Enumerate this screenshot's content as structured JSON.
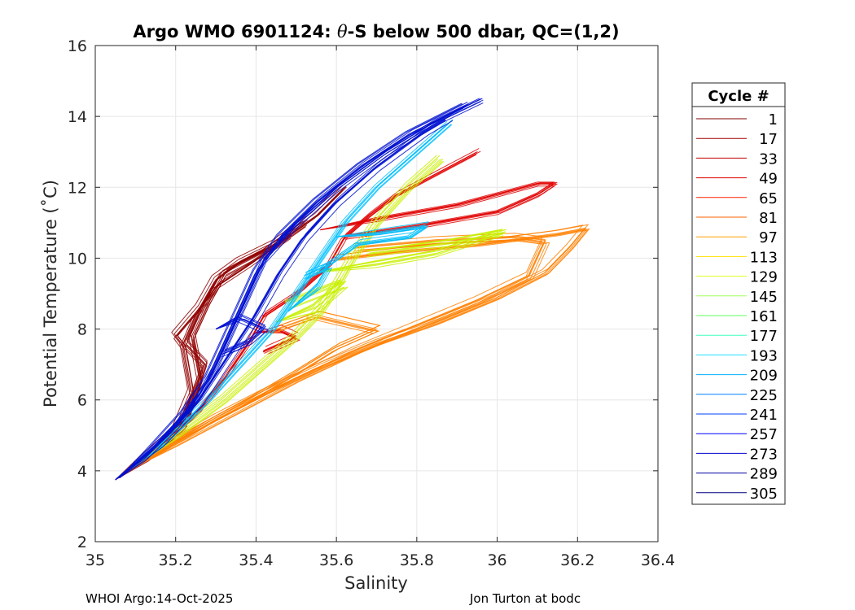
{
  "chart_data": {
    "type": "line",
    "title": "Argo WMO 6901124: θ-S below 500 dbar,  QC=(1,2)",
    "title_parts": [
      "Argo WMO 6901124: ",
      "θ",
      "-S below 500 dbar,  QC=(1,2)"
    ],
    "xlabel": "Salinity",
    "ylabel": "Potential Temperature (˚C)",
    "xlim": [
      35,
      36.4
    ],
    "ylim": [
      2,
      16
    ],
    "xticks": [
      35,
      35.2,
      35.4,
      35.6,
      35.8,
      36,
      36.2,
      36.4
    ],
    "xtick_labels": [
      "35",
      "35.2",
      "35.4",
      "35.6",
      "35.8",
      "36",
      "36.2",
      "36.4"
    ],
    "yticks": [
      2,
      4,
      6,
      8,
      10,
      12,
      14,
      16
    ],
    "ytick_labels": [
      "2",
      "4",
      "6",
      "8",
      "10",
      "12",
      "14",
      "16"
    ],
    "grid": true,
    "legend": {
      "title": "Cycle #",
      "placement": "right-outside",
      "entries": [
        {
          "label": "1",
          "color": "#800000"
        },
        {
          "label": "17",
          "color": "#a00000"
        },
        {
          "label": "33",
          "color": "#c00000"
        },
        {
          "label": "49",
          "color": "#e00000"
        },
        {
          "label": "65",
          "color": "#ff2000"
        },
        {
          "label": "81",
          "color": "#ff6000"
        },
        {
          "label": "97",
          "color": "#ffa000"
        },
        {
          "label": "113",
          "color": "#ffe000"
        },
        {
          "label": "129",
          "color": "#e0ff20"
        },
        {
          "label": "145",
          "color": "#a0ff60"
        },
        {
          "label": "161",
          "color": "#60ff60"
        },
        {
          "label": "177",
          "color": "#40ffc0"
        },
        {
          "label": "193",
          "color": "#20e0ff"
        },
        {
          "label": "209",
          "color": "#00b0ff"
        },
        {
          "label": "225",
          "color": "#0080ff"
        },
        {
          "label": "241",
          "color": "#0040ff"
        },
        {
          "label": "257",
          "color": "#0000ff"
        },
        {
          "label": "273",
          "color": "#0000d0"
        },
        {
          "label": "289",
          "color": "#0000a0"
        },
        {
          "label": "305",
          "color": "#000080"
        }
      ]
    },
    "series_groups": [
      {
        "name": "cycles 1-17 (dark red)",
        "color": "#900000",
        "profiles": [
          [
            [
              35.05,
              3.75
            ],
            [
              35.12,
              4.3
            ],
            [
              35.2,
              5.1
            ],
            [
              35.24,
              6.2
            ],
            [
              35.22,
              7.5
            ],
            [
              35.2,
              7.8
            ],
            [
              35.26,
              8.6
            ],
            [
              35.3,
              9.4
            ],
            [
              35.36,
              9.9
            ],
            [
              35.45,
              10.4
            ],
            [
              35.55,
              11.2
            ],
            [
              35.62,
              12.0
            ]
          ],
          [
            [
              35.05,
              3.75
            ],
            [
              35.13,
              4.4
            ],
            [
              35.22,
              5.3
            ],
            [
              35.26,
              6.6
            ],
            [
              35.24,
              7.8
            ],
            [
              35.28,
              8.8
            ],
            [
              35.32,
              9.6
            ],
            [
              35.42,
              10.2
            ],
            [
              35.52,
              11.0
            ]
          ],
          [
            [
              35.06,
              3.8
            ],
            [
              35.14,
              4.5
            ],
            [
              35.23,
              5.6
            ],
            [
              35.27,
              7.0
            ],
            [
              35.22,
              7.6
            ],
            [
              35.25,
              8.4
            ],
            [
              35.3,
              9.2
            ],
            [
              35.38,
              9.8
            ],
            [
              35.48,
              10.6
            ]
          ]
        ]
      },
      {
        "name": "cycles 33-65 (red)",
        "color": "#e00000",
        "profiles": [
          [
            [
              35.06,
              3.8
            ],
            [
              35.15,
              4.6
            ],
            [
              35.25,
              5.6
            ],
            [
              35.32,
              6.6
            ],
            [
              35.38,
              7.6
            ],
            [
              35.42,
              8.4
            ],
            [
              35.5,
              9.0
            ],
            [
              35.58,
              9.8
            ],
            [
              35.62,
              10.6
            ],
            [
              35.68,
              11.2
            ],
            [
              35.75,
              11.8
            ],
            [
              35.85,
              12.4
            ],
            [
              35.95,
              13.0
            ]
          ],
          [
            [
              35.4,
              7.9
            ],
            [
              35.46,
              8.0
            ],
            [
              35.5,
              7.8
            ],
            [
              35.42,
              7.4
            ]
          ],
          [
            [
              35.56,
              10.8
            ],
            [
              35.7,
              11.1
            ],
            [
              35.9,
              11.5
            ],
            [
              36.1,
              12.1
            ],
            [
              36.14,
              12.1
            ],
            [
              36.1,
              11.8
            ],
            [
              36.0,
              11.3
            ],
            [
              35.8,
              10.9
            ],
            [
              35.62,
              10.6
            ]
          ]
        ]
      },
      {
        "name": "cycles 81-113 (orange)",
        "color": "#ff8000",
        "profiles": [
          [
            [
              35.07,
              3.9
            ],
            [
              35.18,
              4.7
            ],
            [
              35.3,
              5.5
            ],
            [
              35.42,
              6.2
            ],
            [
              35.55,
              6.9
            ],
            [
              35.7,
              7.6
            ],
            [
              35.85,
              8.2
            ],
            [
              36.0,
              8.9
            ],
            [
              36.12,
              9.6
            ],
            [
              36.18,
              10.3
            ],
            [
              36.22,
              10.85
            ],
            [
              36.15,
              10.7
            ],
            [
              35.95,
              10.4
            ],
            [
              35.75,
              10.2
            ],
            [
              35.6,
              10.0
            ]
          ],
          [
            [
              35.08,
              4.0
            ],
            [
              35.2,
              4.8
            ],
            [
              35.35,
              5.7
            ],
            [
              35.5,
              6.6
            ],
            [
              35.65,
              7.4
            ],
            [
              35.8,
              8.1
            ],
            [
              35.95,
              8.8
            ],
            [
              36.08,
              9.5
            ],
            [
              36.12,
              10.5
            ],
            [
              36.05,
              10.6
            ],
            [
              35.85,
              10.5
            ],
            [
              35.65,
              10.3
            ]
          ],
          [
            [
              35.1,
              4.1
            ],
            [
              35.22,
              5.0
            ],
            [
              35.38,
              6.0
            ],
            [
              35.5,
              6.8
            ],
            [
              35.6,
              7.5
            ],
            [
              35.7,
              8.0
            ],
            [
              35.55,
              8.4
            ],
            [
              35.45,
              8.0
            ]
          ]
        ]
      },
      {
        "name": "cycles 129-161 (yellow-green)",
        "color": "#c8f000",
        "profiles": [
          [
            [
              35.08,
              4.0
            ],
            [
              35.2,
              5.0
            ],
            [
              35.32,
              6.0
            ],
            [
              35.42,
              7.0
            ],
            [
              35.5,
              7.8
            ],
            [
              35.56,
              8.5
            ],
            [
              35.6,
              9.2
            ],
            [
              35.64,
              10.0
            ],
            [
              35.7,
              11.0
            ],
            [
              35.78,
              12.0
            ],
            [
              35.86,
              12.8
            ]
          ],
          [
            [
              35.55,
              9.6
            ],
            [
              35.7,
              9.8
            ],
            [
              35.85,
              10.1
            ],
            [
              36.02,
              10.7
            ],
            [
              35.88,
              10.4
            ],
            [
              35.68,
              10.1
            ]
          ],
          [
            [
              35.45,
              8.2
            ],
            [
              35.55,
              8.6
            ],
            [
              35.62,
              9.3
            ],
            [
              35.55,
              9.0
            ],
            [
              35.48,
              8.7
            ]
          ]
        ]
      },
      {
        "name": "cycles 177-225 (cyan)",
        "color": "#00c0ff",
        "profiles": [
          [
            [
              35.06,
              3.85
            ],
            [
              35.17,
              4.8
            ],
            [
              35.28,
              6.0
            ],
            [
              35.36,
              7.0
            ],
            [
              35.44,
              8.0
            ],
            [
              35.5,
              9.0
            ],
            [
              35.56,
              10.0
            ],
            [
              35.62,
              11.0
            ],
            [
              35.7,
              12.0
            ],
            [
              35.8,
              13.0
            ],
            [
              35.88,
              13.8
            ]
          ],
          [
            [
              35.6,
              10.6
            ],
            [
              35.7,
              10.7
            ],
            [
              35.82,
              10.9
            ],
            [
              35.78,
              10.6
            ],
            [
              35.65,
              10.4
            ],
            [
              35.6,
              10.0
            ],
            [
              35.55,
              9.6
            ]
          ],
          [
            [
              35.48,
              8.5
            ],
            [
              35.55,
              9.2
            ],
            [
              35.58,
              9.8
            ],
            [
              35.52,
              9.5
            ]
          ]
        ]
      },
      {
        "name": "cycles 241-305 (blue)",
        "color": "#0010d0",
        "profiles": [
          [
            [
              35.05,
              3.75
            ],
            [
              35.12,
              4.4
            ],
            [
              35.2,
              5.3
            ],
            [
              35.26,
              6.2
            ],
            [
              35.3,
              7.0
            ],
            [
              35.34,
              8.0
            ],
            [
              35.38,
              9.0
            ],
            [
              35.42,
              10.0
            ],
            [
              35.5,
              11.0
            ],
            [
              35.6,
              12.0
            ],
            [
              35.72,
              13.0
            ],
            [
              35.85,
              13.9
            ],
            [
              35.96,
              14.5
            ]
          ],
          [
            [
              35.06,
              3.8
            ],
            [
              35.14,
              4.6
            ],
            [
              35.22,
              5.6
            ],
            [
              35.28,
              6.6
            ],
            [
              35.32,
              7.6
            ],
            [
              35.36,
              8.6
            ],
            [
              35.4,
              9.6
            ],
            [
              35.46,
              10.6
            ],
            [
              35.55,
              11.6
            ],
            [
              35.66,
              12.6
            ],
            [
              35.78,
              13.5
            ],
            [
              35.92,
              14.3
            ]
          ],
          [
            [
              35.06,
              3.8
            ],
            [
              35.16,
              4.8
            ],
            [
              35.26,
              6.0
            ],
            [
              35.33,
              7.2
            ],
            [
              35.4,
              8.4
            ],
            [
              35.46,
              9.6
            ],
            [
              35.52,
              10.6
            ],
            [
              35.6,
              11.6
            ],
            [
              35.7,
              12.6
            ],
            [
              35.82,
              13.6
            ],
            [
              35.88,
              14.0
            ]
          ],
          [
            [
              35.3,
              8.0
            ],
            [
              35.36,
              8.3
            ],
            [
              35.42,
              8.0
            ],
            [
              35.38,
              7.6
            ],
            [
              35.32,
              7.3
            ]
          ]
        ]
      }
    ],
    "footer_left": "WHOI Argo:14-Oct-2025",
    "footer_right": "Jon Turton at bodc"
  }
}
